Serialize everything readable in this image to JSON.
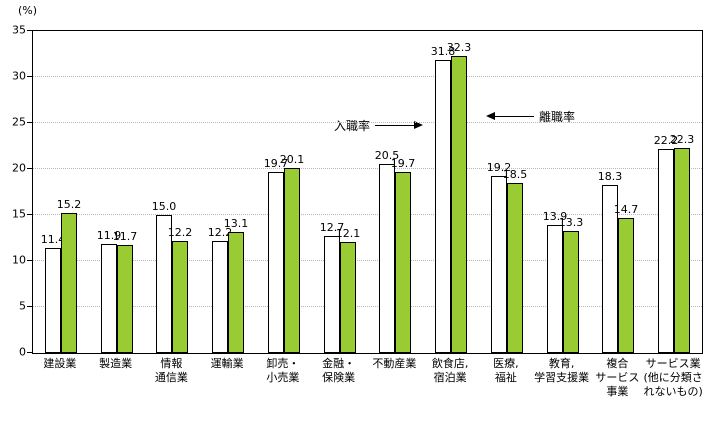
{
  "chart_data": {
    "type": "bar",
    "unit_label": "(%)",
    "title": "",
    "xlabel": "",
    "ylabel": "(%)",
    "ylim": [
      0,
      35
    ],
    "ytick_step": 5,
    "grid": "dotted-horizontal",
    "legend_position": "inline-annotations",
    "categories": [
      [
        "建設業"
      ],
      [
        "製造業"
      ],
      [
        "情報",
        "通信業"
      ],
      [
        "運輸業"
      ],
      [
        "卸売・",
        "小売業"
      ],
      [
        "金融・",
        "保険業"
      ],
      [
        "不動産業"
      ],
      [
        "飲食店,",
        "宿泊業"
      ],
      [
        "医療,",
        "福祉"
      ],
      [
        "教育,",
        "学習支援業"
      ],
      [
        "複合",
        "サービス",
        "事業"
      ],
      [
        "サービス業",
        "(他に分類さ",
        "れないもの)"
      ]
    ],
    "series": [
      {
        "name": "入職率",
        "color": "#ffffff",
        "values": [
          11.4,
          11.9,
          15.0,
          12.2,
          19.7,
          12.7,
          20.5,
          31.8,
          19.2,
          13.9,
          18.3,
          22.2
        ]
      },
      {
        "name": "離職率",
        "color": "#99cc33",
        "values": [
          15.2,
          11.7,
          12.2,
          13.1,
          20.1,
          12.1,
          19.7,
          32.3,
          18.5,
          13.3,
          14.7,
          22.3
        ]
      }
    ],
    "annotations": [
      {
        "text": "入職率",
        "arrow": "right"
      },
      {
        "text": "離職率",
        "arrow": "left"
      }
    ]
  }
}
